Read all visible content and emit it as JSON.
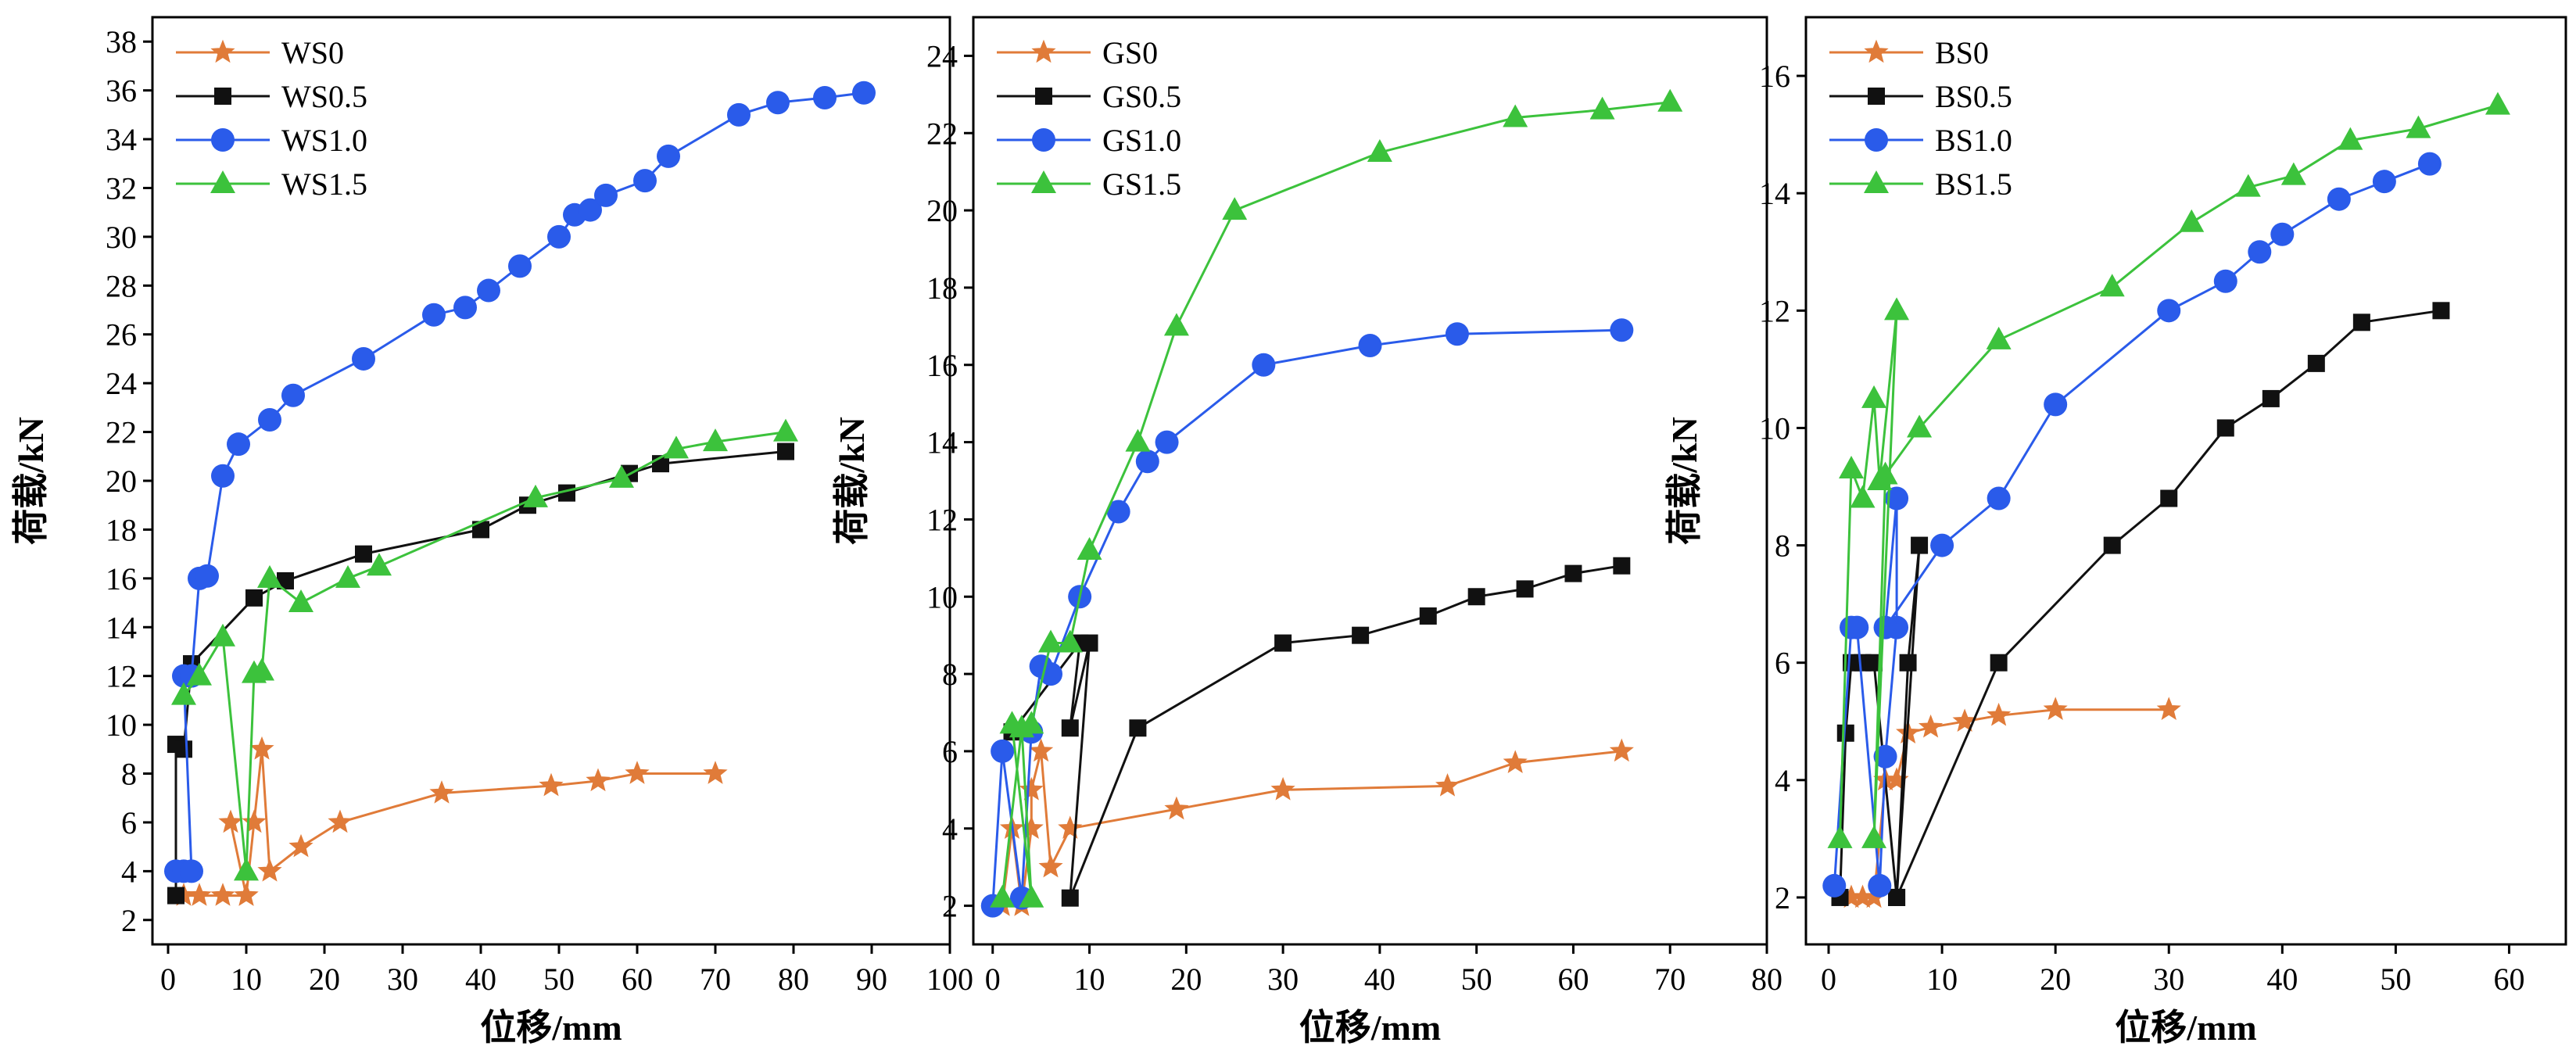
{
  "chart_data": [
    {
      "type": "line",
      "xlabel": "位移/mm",
      "ylabel": "荷载/kN",
      "xlim": [
        -2,
        100
      ],
      "ylim": [
        1,
        39
      ],
      "xticks": [
        0,
        10,
        20,
        30,
        40,
        50,
        60,
        70,
        80,
        90,
        100
      ],
      "yticks": [
        2,
        4,
        6,
        8,
        10,
        12,
        14,
        16,
        18,
        20,
        22,
        24,
        26,
        28,
        30,
        32,
        34,
        36,
        38
      ],
      "legend_position": "top-left",
      "series": [
        {
          "name": "WS0",
          "color": "#e07b39",
          "marker": "star",
          "x": [
            2,
            4,
            7,
            10,
            8,
            10,
            11,
            12,
            13,
            17,
            22,
            35,
            49,
            55,
            60,
            70
          ],
          "y": [
            3,
            3,
            3,
            3,
            6,
            3,
            6,
            9,
            4,
            5,
            6,
            7.2,
            7.5,
            7.7,
            8,
            8
          ]
        },
        {
          "name": "WS0.5",
          "color": "#111111",
          "marker": "square",
          "x": [
            1,
            1,
            2,
            3,
            11,
            15,
            25,
            40,
            46,
            51,
            59,
            63,
            79
          ],
          "y": [
            3,
            9.2,
            9,
            12.5,
            15.2,
            15.9,
            17,
            18,
            19,
            19.5,
            20.3,
            20.7,
            21.2
          ]
        },
        {
          "name": "WS1.0",
          "color": "#2a5bea",
          "marker": "circle",
          "x": [
            1,
            2,
            3,
            2,
            3,
            4,
            5,
            7,
            9,
            13,
            16,
            25,
            34,
            38,
            41,
            45,
            50,
            52,
            54,
            56,
            61,
            64,
            73,
            78,
            84,
            89
          ],
          "y": [
            4,
            4,
            4,
            12,
            12,
            16,
            16.1,
            20.2,
            21.5,
            22.5,
            23.5,
            25,
            26.8,
            27.1,
            27.8,
            28.8,
            30,
            30.9,
            31.1,
            31.7,
            32.3,
            33.3,
            35,
            35.5,
            35.7,
            35.9
          ]
        },
        {
          "name": "WS1.5",
          "color": "#3cc23c",
          "marker": "triangle",
          "x": [
            2,
            4,
            7,
            10,
            11,
            12,
            13,
            17,
            23,
            27,
            47,
            58,
            65,
            70,
            79
          ],
          "y": [
            11.2,
            12,
            13.6,
            4,
            12.1,
            12.2,
            16,
            15,
            16,
            16.5,
            19.3,
            20.1,
            21.3,
            21.6,
            22
          ]
        }
      ]
    },
    {
      "type": "line",
      "xlabel": "位移/mm",
      "ylabel": "荷载/kN",
      "xlim": [
        -2,
        80
      ],
      "ylim": [
        1,
        25
      ],
      "xticks": [
        0,
        10,
        20,
        30,
        40,
        50,
        60,
        70,
        80
      ],
      "yticks": [
        2,
        4,
        6,
        8,
        10,
        12,
        14,
        16,
        18,
        20,
        22,
        24
      ],
      "legend_position": "top-left",
      "series": [
        {
          "name": "GS0",
          "color": "#e07b39",
          "marker": "star",
          "x": [
            1,
            2,
            3,
            4,
            4,
            5,
            6,
            8,
            19,
            30,
            47,
            54,
            65
          ],
          "y": [
            2,
            4,
            2,
            4,
            5,
            6,
            3,
            4,
            4.5,
            5,
            5.1,
            5.7,
            6
          ]
        },
        {
          "name": "GS0.5",
          "color": "#111111",
          "marker": "square",
          "x": [
            2,
            9,
            8,
            10,
            8,
            15,
            30,
            38,
            45,
            50,
            55,
            60,
            65
          ],
          "y": [
            6.5,
            8.8,
            6.6,
            8.8,
            2.2,
            6.6,
            8.8,
            9,
            9.5,
            10,
            10.2,
            10.6,
            10.8
          ]
        },
        {
          "name": "GS1.0",
          "color": "#2a5bea",
          "marker": "circle",
          "x": [
            0,
            1,
            3,
            4,
            5,
            6,
            9,
            13,
            16,
            18,
            28,
            39,
            48,
            65
          ],
          "y": [
            2,
            6,
            2.2,
            6.5,
            8.2,
            8,
            10,
            12.2,
            13.5,
            14,
            16,
            16.5,
            16.8,
            16.9
          ]
        },
        {
          "name": "GS1.5",
          "color": "#3cc23c",
          "marker": "triangle",
          "x": [
            1,
            3,
            4,
            2,
            4,
            6,
            8,
            10,
            15,
            19,
            25,
            40,
            54,
            63,
            70
          ],
          "y": [
            2.2,
            6.6,
            2.2,
            6.7,
            6.7,
            8.8,
            8.8,
            11.2,
            14,
            17,
            20,
            21.5,
            22.4,
            22.6,
            22.8
          ]
        }
      ]
    },
    {
      "type": "line",
      "xlabel": "位移/mm",
      "ylabel": "荷载/kN",
      "xlim": [
        -2,
        65
      ],
      "ylim": [
        1.2,
        17
      ],
      "xticks": [
        0,
        10,
        20,
        30,
        40,
        50,
        60
      ],
      "yticks": [
        2,
        4,
        6,
        8,
        10,
        12,
        14,
        16
      ],
      "legend_position": "top-left",
      "series": [
        {
          "name": "BS0",
          "color": "#e07b39",
          "marker": "star",
          "x": [
            2,
            3,
            4,
            5,
            6,
            7,
            9,
            12,
            15,
            20,
            30
          ],
          "y": [
            2,
            2,
            2,
            4,
            4,
            4.8,
            4.9,
            5,
            5.1,
            5.2,
            5.2
          ]
        },
        {
          "name": "BS0.5",
          "color": "#111111",
          "marker": "square",
          "x": [
            1,
            1.5,
            2,
            3,
            4,
            6,
            7,
            8,
            6,
            15,
            25,
            30,
            35,
            39,
            43,
            47,
            54
          ],
          "y": [
            2,
            4.8,
            6,
            6,
            6,
            2,
            6,
            8,
            2,
            6,
            8,
            8.8,
            10,
            10.5,
            11.1,
            11.8,
            12
          ]
        },
        {
          "name": "BS1.0",
          "color": "#2a5bea",
          "marker": "circle",
          "x": [
            0.5,
            2,
            2.5,
            4.5,
            5,
            6,
            6,
            5,
            10,
            15,
            20,
            30,
            35,
            38,
            40,
            45,
            49,
            53
          ],
          "y": [
            2.2,
            6.6,
            6.6,
            2.2,
            4.4,
            6.6,
            8.8,
            6.6,
            8,
            8.8,
            10.4,
            12,
            12.5,
            13,
            13.3,
            13.9,
            14.2,
            14.5
          ]
        },
        {
          "name": "BS1.5",
          "color": "#3cc23c",
          "marker": "triangle",
          "x": [
            1,
            2,
            3,
            4,
            4.5,
            6,
            4,
            5,
            8,
            15,
            25,
            32,
            37,
            41,
            46,
            52,
            59
          ],
          "y": [
            3,
            9.3,
            8.8,
            10.5,
            9.1,
            12,
            3,
            9.2,
            10,
            11.5,
            12.4,
            13.5,
            14.1,
            14.3,
            14.9,
            15.1,
            15.5
          ]
        }
      ]
    }
  ]
}
